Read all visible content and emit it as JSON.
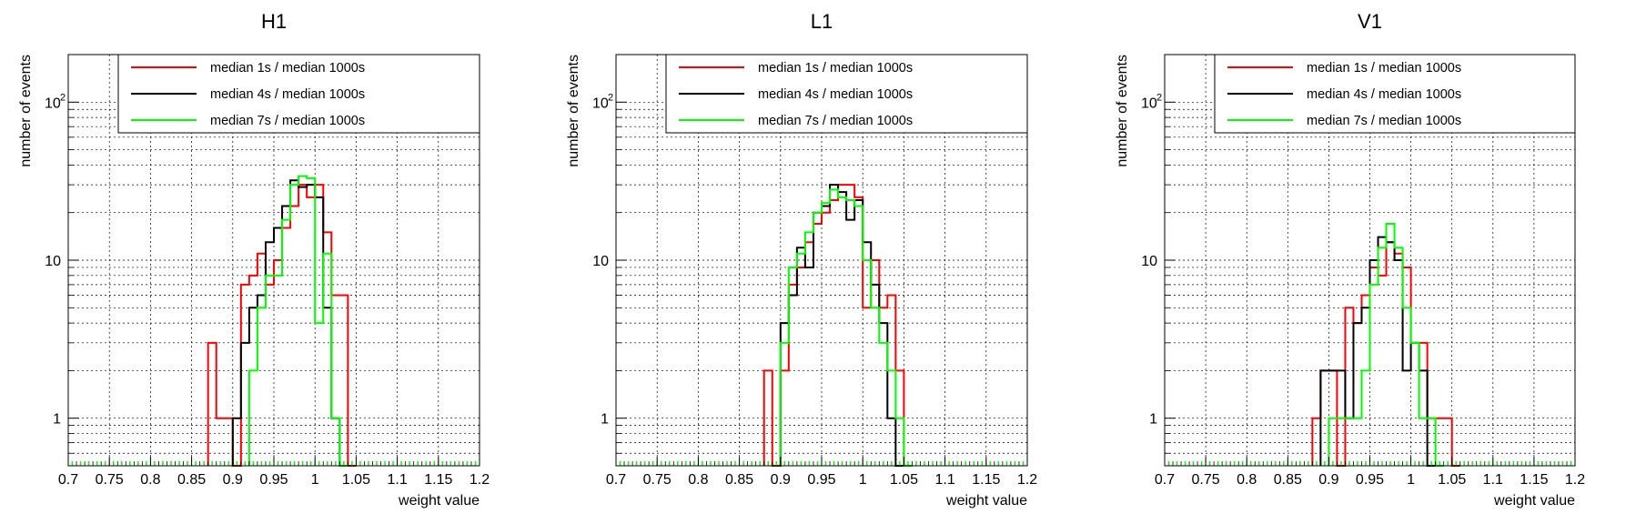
{
  "colors": {
    "red": "#ff0000",
    "black": "#000000",
    "green": "#00ff00",
    "grid": "#000000"
  },
  "legend_entries": [
    "median 1s / median 1000s",
    "median 4s / median 1000s",
    "median 7s / median 1000s"
  ],
  "chart_data": [
    {
      "type": "histogram",
      "title": "H1",
      "xlabel": "weight value",
      "ylabel": "number of events",
      "xlim": [
        0.7,
        1.2
      ],
      "ylim": [
        0.5,
        200
      ],
      "yscale": "log",
      "grid": true,
      "legend_position": "top",
      "x_ticks": [
        "0.7",
        "0.75",
        "0.8",
        "0.85",
        "0.9",
        "0.95",
        "1",
        "1.05",
        "1.1",
        "1.15",
        "1.2"
      ],
      "y_ticks": [
        "1",
        "10",
        "10²"
      ],
      "bin_width": 0.01,
      "series": [
        {
          "name": "median 1s / median 1000s",
          "color": "#ff0000",
          "bins": [
            [
              0.87,
              3
            ],
            [
              0.88,
              1
            ],
            [
              0.89,
              1
            ],
            [
              0.9,
              0
            ],
            [
              0.91,
              7
            ],
            [
              0.92,
              8
            ],
            [
              0.93,
              11
            ],
            [
              0.94,
              7
            ],
            [
              0.95,
              10
            ],
            [
              0.96,
              16
            ],
            [
              0.97,
              22
            ],
            [
              0.98,
              30
            ],
            [
              0.99,
              25
            ],
            [
              1.0,
              30
            ],
            [
              1.01,
              15
            ],
            [
              1.02,
              6
            ],
            [
              1.03,
              6
            ],
            [
              1.04,
              0
            ]
          ]
        },
        {
          "name": "median 4s / median 1000s",
          "color": "#000000",
          "bins": [
            [
              0.9,
              1
            ],
            [
              0.91,
              3
            ],
            [
              0.92,
              5
            ],
            [
              0.93,
              6
            ],
            [
              0.94,
              13
            ],
            [
              0.95,
              16
            ],
            [
              0.96,
              22
            ],
            [
              0.97,
              32
            ],
            [
              0.98,
              29
            ],
            [
              0.99,
              30
            ],
            [
              1.0,
              25
            ],
            [
              1.01,
              5
            ],
            [
              1.02,
              1
            ],
            [
              1.03,
              0
            ]
          ]
        },
        {
          "name": "median 7s / median 1000s",
          "color": "#00ff00",
          "bins": [
            [
              0.92,
              2
            ],
            [
              0.93,
              5
            ],
            [
              0.94,
              8
            ],
            [
              0.95,
              8
            ],
            [
              0.96,
              18
            ],
            [
              0.97,
              30
            ],
            [
              0.98,
              34
            ],
            [
              0.99,
              33
            ],
            [
              1.0,
              4
            ],
            [
              1.01,
              11
            ],
            [
              1.02,
              1
            ],
            [
              1.03,
              0
            ]
          ]
        }
      ]
    },
    {
      "type": "histogram",
      "title": "L1",
      "xlabel": "weight value",
      "ylabel": "number of events",
      "xlim": [
        0.7,
        1.2
      ],
      "ylim": [
        0.5,
        200
      ],
      "yscale": "log",
      "grid": true,
      "legend_position": "top",
      "x_ticks": [
        "0.7",
        "0.75",
        "0.8",
        "0.85",
        "0.9",
        "0.95",
        "1",
        "1.05",
        "1.1",
        "1.15",
        "1.2"
      ],
      "y_ticks": [
        "1",
        "10",
        "10²"
      ],
      "bin_width": 0.01,
      "series": [
        {
          "name": "median 1s / median 1000s",
          "color": "#ff0000",
          "bins": [
            [
              0.88,
              2
            ],
            [
              0.89,
              0
            ],
            [
              0.9,
              2
            ],
            [
              0.91,
              7
            ],
            [
              0.92,
              9
            ],
            [
              0.93,
              13
            ],
            [
              0.94,
              17
            ],
            [
              0.95,
              20
            ],
            [
              0.96,
              24
            ],
            [
              0.97,
              30
            ],
            [
              0.98,
              30
            ],
            [
              0.99,
              25
            ],
            [
              1.0,
              5
            ],
            [
              1.01,
              10
            ],
            [
              1.02,
              5
            ],
            [
              1.03,
              6
            ],
            [
              1.04,
              2
            ],
            [
              1.05,
              0
            ]
          ]
        },
        {
          "name": "median 4s / median 1000s",
          "color": "#000000",
          "bins": [
            [
              0.9,
              4
            ],
            [
              0.91,
              6
            ],
            [
              0.92,
              12
            ],
            [
              0.93,
              9
            ],
            [
              0.94,
              20
            ],
            [
              0.95,
              22
            ],
            [
              0.96,
              30
            ],
            [
              0.97,
              27
            ],
            [
              0.98,
              18
            ],
            [
              0.99,
              24
            ],
            [
              1.0,
              13
            ],
            [
              1.01,
              7
            ],
            [
              1.02,
              4
            ],
            [
              1.03,
              1
            ],
            [
              1.04,
              0
            ]
          ]
        },
        {
          "name": "median 7s / median 1000s",
          "color": "#00ff00",
          "bins": [
            [
              0.9,
              3
            ],
            [
              0.91,
              9
            ],
            [
              0.92,
              11
            ],
            [
              0.93,
              15
            ],
            [
              0.94,
              20
            ],
            [
              0.95,
              23
            ],
            [
              0.96,
              28
            ],
            [
              0.97,
              25
            ],
            [
              0.98,
              24
            ],
            [
              0.99,
              22
            ],
            [
              1.0,
              10
            ],
            [
              1.01,
              5
            ],
            [
              1.02,
              3
            ],
            [
              1.03,
              2
            ],
            [
              1.04,
              1
            ],
            [
              1.05,
              0
            ]
          ]
        }
      ]
    },
    {
      "type": "histogram",
      "title": "V1",
      "xlabel": "weight value",
      "ylabel": "number of events",
      "xlim": [
        0.7,
        1.2
      ],
      "ylim": [
        0.5,
        200
      ],
      "yscale": "log",
      "grid": true,
      "legend_position": "top",
      "x_ticks": [
        "0.7",
        "0.75",
        "0.8",
        "0.85",
        "0.9",
        "0.95",
        "1",
        "1.05",
        "1.1",
        "1.15",
        "1.2"
      ],
      "y_ticks": [
        "1",
        "10",
        "10²"
      ],
      "bin_width": 0.01,
      "series": [
        {
          "name": "median 1s / median 1000s",
          "color": "#ff0000",
          "bins": [
            [
              0.88,
              1
            ],
            [
              0.89,
              2
            ],
            [
              0.9,
              2
            ],
            [
              0.91,
              0
            ],
            [
              0.92,
              5
            ],
            [
              0.93,
              4
            ],
            [
              0.94,
              6
            ],
            [
              0.95,
              9
            ],
            [
              0.96,
              8
            ],
            [
              0.97,
              13
            ],
            [
              0.98,
              11
            ],
            [
              0.99,
              9
            ],
            [
              1.0,
              3
            ],
            [
              1.01,
              3
            ],
            [
              1.02,
              1
            ],
            [
              1.03,
              1
            ],
            [
              1.04,
              1
            ],
            [
              1.05,
              0
            ]
          ]
        },
        {
          "name": "median 4s / median 1000s",
          "color": "#000000",
          "bins": [
            [
              0.89,
              2
            ],
            [
              0.9,
              2
            ],
            [
              0.91,
              2
            ],
            [
              0.92,
              1
            ],
            [
              0.93,
              4
            ],
            [
              0.94,
              5
            ],
            [
              0.95,
              10
            ],
            [
              0.96,
              14
            ],
            [
              0.97,
              13
            ],
            [
              0.98,
              10
            ],
            [
              0.99,
              2
            ],
            [
              1.0,
              3
            ],
            [
              1.01,
              2
            ],
            [
              1.02,
              0
            ]
          ]
        },
        {
          "name": "median 7s / median 1000s",
          "color": "#00ff00",
          "bins": [
            [
              0.9,
              1
            ],
            [
              0.91,
              1
            ],
            [
              0.92,
              1
            ],
            [
              0.93,
              1
            ],
            [
              0.94,
              2
            ],
            [
              0.95,
              7
            ],
            [
              0.96,
              12
            ],
            [
              0.97,
              17
            ],
            [
              0.98,
              12
            ],
            [
              0.99,
              5
            ],
            [
              1.0,
              3
            ],
            [
              1.01,
              1
            ],
            [
              1.02,
              1
            ],
            [
              1.03,
              0
            ]
          ]
        }
      ]
    }
  ]
}
